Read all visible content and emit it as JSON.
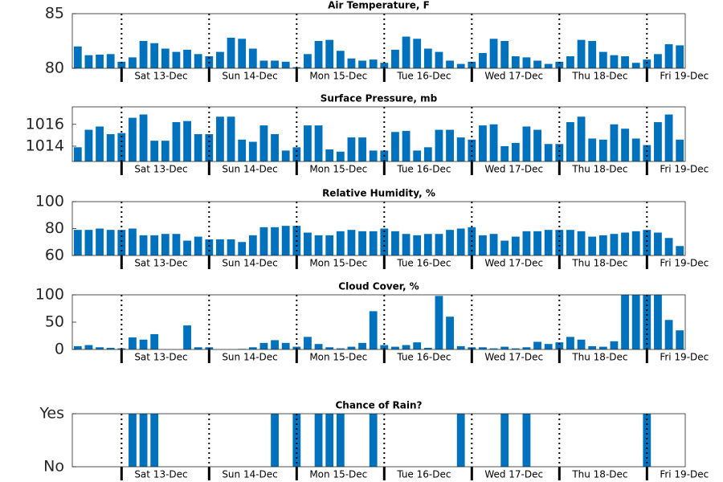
{
  "chart_data": [
    {
      "type": "bar",
      "title": "Air Temperature, F",
      "color": "#0072bd",
      "grid": "dotted-x",
      "values": [
        82.0,
        81.2,
        81.25,
        81.3,
        80.6,
        81.0,
        82.5,
        82.3,
        81.8,
        81.5,
        81.7,
        81.3,
        81.1,
        81.5,
        82.8,
        82.7,
        81.8,
        80.7,
        80.7,
        80.6,
        80.1,
        81.3,
        82.5,
        82.6,
        81.6,
        80.9,
        80.7,
        80.8,
        80.5,
        81.7,
        82.9,
        82.7,
        81.8,
        81.5,
        80.7,
        80.4,
        80.6,
        81.4,
        82.7,
        82.5,
        81.1,
        81.0,
        80.7,
        80.4,
        80.6,
        81.1,
        82.6,
        82.5,
        81.5,
        81.2,
        81.1,
        80.5,
        80.8,
        81.3,
        82.2,
        82.1
      ],
      "ylim": [
        80,
        85
      ],
      "yticks": [
        80,
        85
      ],
      "xlim": [
        -0.5,
        55.5
      ],
      "xticks": [
        {
          "value": 4,
          "label": "Sat 13-Dec"
        },
        {
          "value": 12,
          "label": "Sun 14-Dec"
        },
        {
          "value": 20,
          "label": "Mon 15-Dec"
        },
        {
          "value": 28,
          "label": "Tue 16-Dec"
        },
        {
          "value": 36,
          "label": "Wed 17-Dec"
        },
        {
          "value": 44,
          "label": "Thu 18-Dec"
        },
        {
          "value": 52,
          "label": "Fri 19-Dec"
        }
      ]
    },
    {
      "type": "bar",
      "title": "Surface Pressure, mb",
      "color": "#0072bd",
      "grid": "dotted-x",
      "values": [
        1013.9,
        1015.5,
        1015.8,
        1015.1,
        1015.2,
        1016.6,
        1016.9,
        1014.5,
        1014.5,
        1016.2,
        1016.3,
        1015.1,
        1015.1,
        1016.7,
        1016.7,
        1014.6,
        1014.4,
        1015.9,
        1015.1,
        1013.6,
        1013.9,
        1015.9,
        1015.9,
        1013.7,
        1013.5,
        1014.8,
        1014.8,
        1013.6,
        1013.6,
        1015.3,
        1015.4,
        1013.6,
        1013.9,
        1015.5,
        1015.5,
        1014.8,
        1014.6,
        1015.9,
        1016.0,
        1014.0,
        1014.3,
        1015.8,
        1015.5,
        1014.2,
        1014.2,
        1016.2,
        1016.7,
        1014.7,
        1014.6,
        1016.0,
        1015.6,
        1014.7,
        1014.1,
        1016.2,
        1016.9,
        1014.6
      ],
      "ylim": [
        1012.6,
        1017.6
      ],
      "yticks": [
        1014,
        1016
      ],
      "xlim": [
        -0.5,
        55.5
      ],
      "xticks": [
        {
          "value": 4,
          "label": "Sat 13-Dec"
        },
        {
          "value": 12,
          "label": "Sun 14-Dec"
        },
        {
          "value": 20,
          "label": "Mon 15-Dec"
        },
        {
          "value": 28,
          "label": "Tue 16-Dec"
        },
        {
          "value": 36,
          "label": "Wed 17-Dec"
        },
        {
          "value": 44,
          "label": "Thu 18-Dec"
        },
        {
          "value": 52,
          "label": "Fri 19-Dec"
        }
      ]
    },
    {
      "type": "bar",
      "title": "Relative Humidity, %",
      "color": "#0072bd",
      "grid": "dotted-x",
      "values": [
        79,
        79,
        80,
        79,
        79,
        80,
        75,
        75,
        76,
        76,
        71,
        74,
        72,
        72,
        72,
        70,
        75,
        81,
        81,
        82,
        82,
        77,
        75,
        75,
        78,
        79,
        78,
        78,
        80,
        78,
        76,
        75,
        76,
        76,
        79,
        80,
        81,
        75,
        76,
        71,
        74,
        78,
        78,
        79,
        79,
        79,
        78,
        74,
        75,
        76,
        77,
        78,
        79,
        77,
        73,
        67
      ],
      "ylim": [
        60,
        100
      ],
      "yticks": [
        60,
        80,
        100
      ],
      "xlim": [
        -0.5,
        55.5
      ],
      "xticks": [
        {
          "value": 4,
          "label": "Sat 13-Dec"
        },
        {
          "value": 12,
          "label": "Sun 14-Dec"
        },
        {
          "value": 20,
          "label": "Mon 15-Dec"
        },
        {
          "value": 28,
          "label": "Tue 16-Dec"
        },
        {
          "value": 36,
          "label": "Wed 17-Dec"
        },
        {
          "value": 44,
          "label": "Thu 18-Dec"
        },
        {
          "value": 52,
          "label": "Fri 19-Dec"
        }
      ]
    },
    {
      "type": "bar",
      "title": "Cloud Cover, %",
      "color": "#0072bd",
      "grid": "dotted-x",
      "values": [
        6,
        8,
        4,
        3,
        2,
        22,
        18,
        28,
        0,
        0,
        44,
        4,
        4,
        0,
        0,
        1,
        4,
        12,
        17,
        12,
        5,
        23,
        10,
        4,
        2,
        5,
        12,
        70,
        8,
        5,
        8,
        13,
        3,
        98,
        60,
        6,
        4,
        4,
        2,
        5,
        2,
        4,
        14,
        10,
        13,
        23,
        18,
        6,
        5,
        15,
        100,
        100,
        100,
        100,
        54,
        35
      ],
      "ylim": [
        0,
        100
      ],
      "yticks": [
        0,
        50,
        100
      ],
      "xlim": [
        -0.5,
        55.5
      ],
      "xticks": [
        {
          "value": 4,
          "label": "Sat 13-Dec"
        },
        {
          "value": 12,
          "label": "Sun 14-Dec"
        },
        {
          "value": 20,
          "label": "Mon 15-Dec"
        },
        {
          "value": 28,
          "label": "Tue 16-Dec"
        },
        {
          "value": 36,
          "label": "Wed 17-Dec"
        },
        {
          "value": 44,
          "label": "Thu 18-Dec"
        },
        {
          "value": 52,
          "label": "Fri 19-Dec"
        }
      ]
    },
    {
      "type": "bar",
      "title": "Chance of Rain?",
      "color": "#0072bd",
      "grid": "dotted-x",
      "values": [
        0,
        0,
        0,
        0,
        0,
        1,
        1,
        1,
        0,
        0,
        0,
        0,
        0,
        0,
        0,
        0,
        0,
        0,
        1,
        0,
        1,
        0,
        1,
        1,
        1,
        0,
        0,
        1,
        0,
        0,
        0,
        0,
        0,
        0,
        0,
        1,
        0,
        0,
        0,
        1,
        0,
        1,
        0,
        0,
        0,
        0,
        0,
        0,
        0,
        0,
        0,
        0,
        1,
        0,
        0,
        0
      ],
      "ylim": [
        0,
        1
      ],
      "yticks": [
        {
          "value": 0,
          "label": "No"
        },
        {
          "value": 1,
          "label": "Yes"
        }
      ],
      "xlim": [
        -0.5,
        55.5
      ],
      "xticks": [
        {
          "value": 4,
          "label": "Sat 13-Dec"
        },
        {
          "value": 12,
          "label": "Sun 14-Dec"
        },
        {
          "value": 20,
          "label": "Mon 15-Dec"
        },
        {
          "value": 28,
          "label": "Tue 16-Dec"
        },
        {
          "value": 36,
          "label": "Wed 17-Dec"
        },
        {
          "value": 44,
          "label": "Thu 18-Dec"
        },
        {
          "value": 52,
          "label": "Fri 19-Dec"
        }
      ]
    }
  ]
}
